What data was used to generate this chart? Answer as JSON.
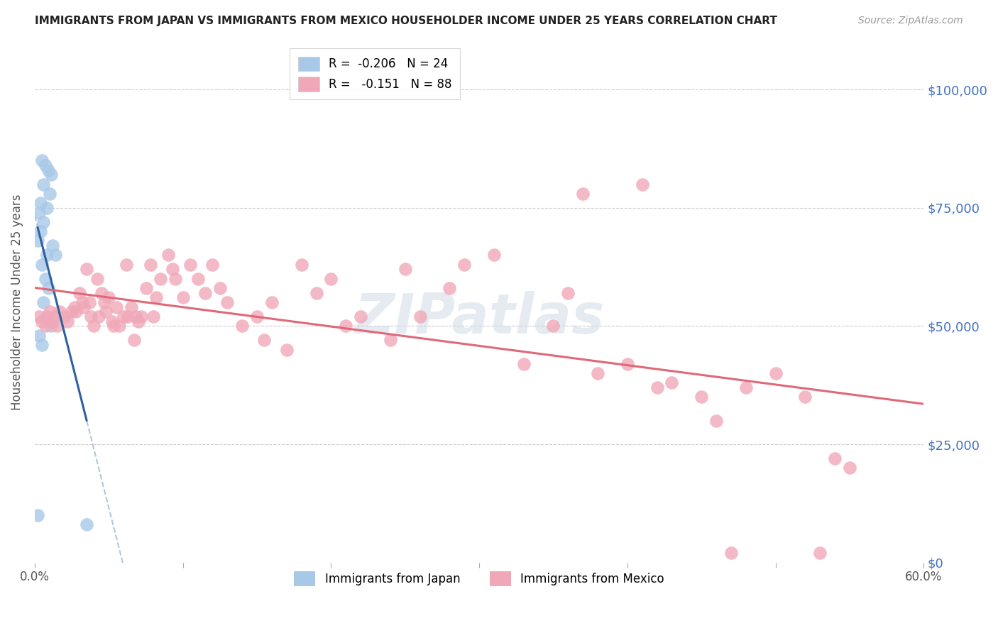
{
  "title": "IMMIGRANTS FROM JAPAN VS IMMIGRANTS FROM MEXICO HOUSEHOLDER INCOME UNDER 25 YEARS CORRELATION CHART",
  "source": "Source: ZipAtlas.com",
  "ylabel": "Householder Income Under 25 years",
  "ytick_labels": [
    "$0",
    "$25,000",
    "$50,000",
    "$75,000",
    "$100,000"
  ],
  "ytick_values": [
    0,
    25000,
    50000,
    75000,
    100000
  ],
  "xlim": [
    0.0,
    0.6
  ],
  "ylim": [
    0,
    110000
  ],
  "japan_color": "#a8c8e8",
  "mexico_color": "#f0a8b8",
  "japan_line_color": "#3060a0",
  "mexico_line_color": "#e06878",
  "japan_dashed_color": "#b0c8d8",
  "background_color": "#ffffff",
  "watermark": "ZIPatlas",
  "japan_r": "-0.206",
  "japan_n": "24",
  "mexico_r": "-0.151",
  "mexico_n": "88",
  "japan_points_x": [
    0.005,
    0.007,
    0.009,
    0.011,
    0.006,
    0.01,
    0.004,
    0.008,
    0.003,
    0.006,
    0.004,
    0.002,
    0.008,
    0.012,
    0.005,
    0.007,
    0.009,
    0.006,
    0.014,
    0.003,
    0.011,
    0.002,
    0.005,
    0.035
  ],
  "japan_points_y": [
    85000,
    84000,
    83000,
    82000,
    80000,
    78000,
    76000,
    75000,
    74000,
    72000,
    70000,
    68000,
    65000,
    67000,
    63000,
    60000,
    58000,
    55000,
    65000,
    48000,
    50000,
    10000,
    46000,
    8000
  ],
  "mexico_points_x": [
    0.003,
    0.005,
    0.007,
    0.008,
    0.01,
    0.012,
    0.013,
    0.015,
    0.017,
    0.02,
    0.022,
    0.025,
    0.027,
    0.028,
    0.03,
    0.032,
    0.033,
    0.035,
    0.037,
    0.038,
    0.04,
    0.042,
    0.043,
    0.045,
    0.047,
    0.048,
    0.05,
    0.052,
    0.053,
    0.055,
    0.057,
    0.06,
    0.062,
    0.063,
    0.065,
    0.067,
    0.068,
    0.07,
    0.072,
    0.075,
    0.078,
    0.08,
    0.082,
    0.085,
    0.09,
    0.093,
    0.095,
    0.1,
    0.105,
    0.11,
    0.115,
    0.12,
    0.125,
    0.13,
    0.14,
    0.15,
    0.155,
    0.16,
    0.17,
    0.18,
    0.19,
    0.2,
    0.21,
    0.22,
    0.24,
    0.25,
    0.26,
    0.28,
    0.29,
    0.31,
    0.33,
    0.35,
    0.36,
    0.38,
    0.4,
    0.42,
    0.43,
    0.45,
    0.46,
    0.48,
    0.5,
    0.52,
    0.54,
    0.55,
    0.37,
    0.41,
    0.47,
    0.53
  ],
  "mexico_points_y": [
    52000,
    51000,
    50000,
    52000,
    53000,
    51000,
    52000,
    50000,
    53000,
    52000,
    51000,
    53000,
    54000,
    53000,
    57000,
    55000,
    54000,
    62000,
    55000,
    52000,
    50000,
    60000,
    52000,
    57000,
    55000,
    53000,
    56000,
    51000,
    50000,
    54000,
    50000,
    52000,
    63000,
    52000,
    54000,
    47000,
    52000,
    51000,
    52000,
    58000,
    63000,
    52000,
    56000,
    60000,
    65000,
    62000,
    60000,
    56000,
    63000,
    60000,
    57000,
    63000,
    58000,
    55000,
    50000,
    52000,
    47000,
    55000,
    45000,
    63000,
    57000,
    60000,
    50000,
    52000,
    47000,
    62000,
    52000,
    58000,
    63000,
    65000,
    42000,
    50000,
    57000,
    40000,
    42000,
    37000,
    38000,
    35000,
    30000,
    37000,
    40000,
    35000,
    22000,
    20000,
    78000,
    80000,
    2000,
    2000
  ]
}
